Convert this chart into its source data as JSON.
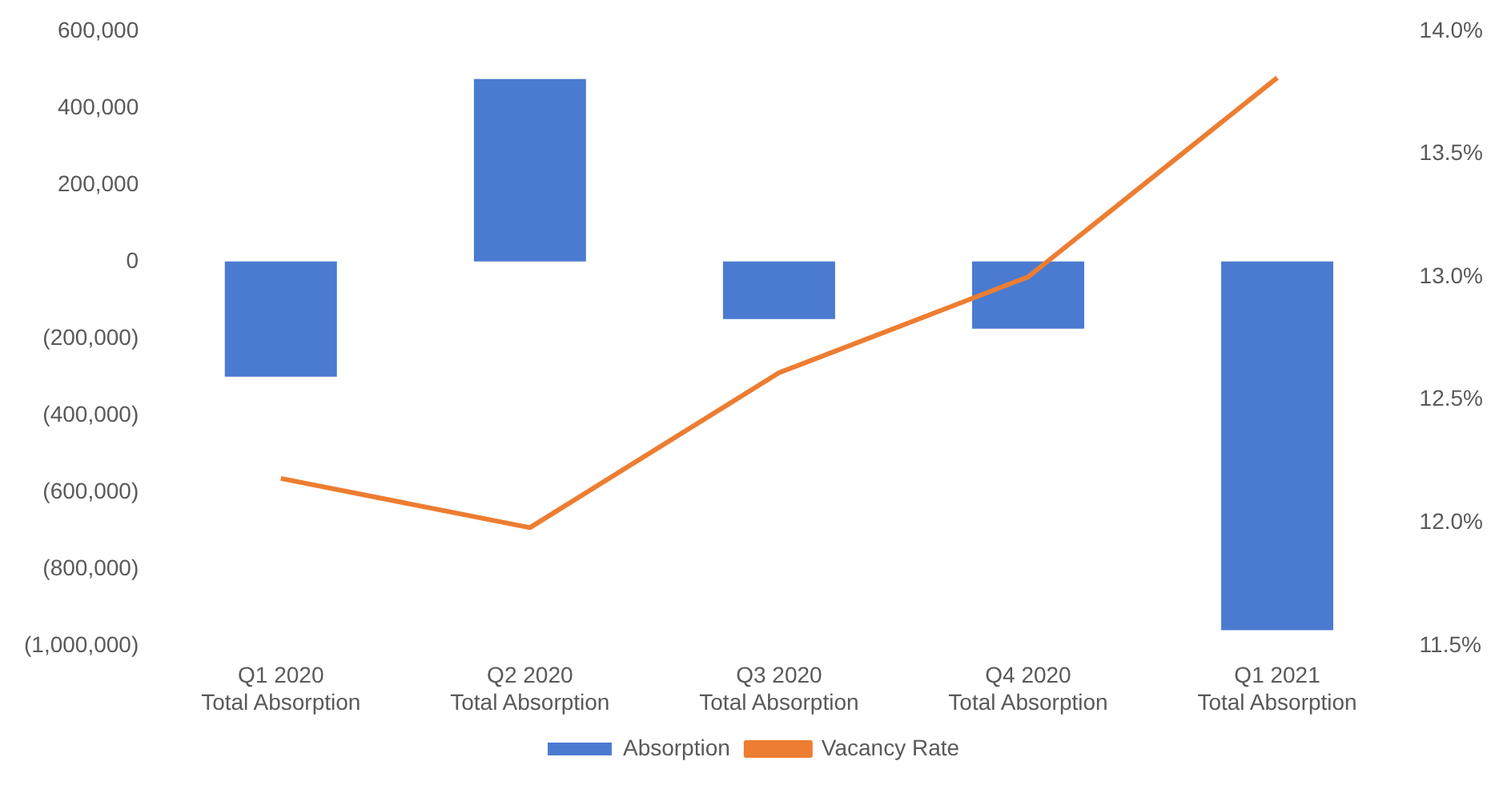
{
  "chart_data": {
    "type": "bar",
    "categories": [
      "Q1 2020\nTotal Absorption",
      "Q2 2020\nTotal Absorption",
      "Q3 2020\nTotal Absorption",
      "Q4 2020\nTotal Absorption",
      "Q1 2021\nTotal Absorption"
    ],
    "series": [
      {
        "name": "Absorption",
        "color": "#4a7bd0",
        "values": [
          -300000,
          475000,
          -150000,
          -175000,
          -960000
        ]
      },
      {
        "name": "Vacancy Rate",
        "type": "line",
        "axis": "y2",
        "color": "#ed7d31",
        "values": [
          12.18,
          11.98,
          12.61,
          13.0,
          13.81
        ]
      }
    ],
    "ylim": [
      -1000000,
      600000
    ],
    "yticks": [
      {
        "value": -1000000,
        "label": "(1,000,000)"
      },
      {
        "value": -800000,
        "label": "(800,000)"
      },
      {
        "value": -600000,
        "label": "(600,000)"
      },
      {
        "value": -400000,
        "label": "(400,000)"
      },
      {
        "value": -200000,
        "label": "(200,000)"
      },
      0,
      {
        "value": 200000,
        "label": "200,000"
      },
      {
        "value": 400000,
        "label": "400,000"
      },
      {
        "value": 600000,
        "label": "600,000"
      }
    ],
    "y2lim": [
      11.5,
      14.0
    ],
    "y2ticks": [
      {
        "value": 11.5,
        "label": "11.5%"
      },
      {
        "value": 12.0,
        "label": "12.0%"
      },
      {
        "value": 12.5,
        "label": "12.5%"
      },
      {
        "value": 13.0,
        "label": "13.0%"
      },
      {
        "value": 13.5,
        "label": "13.5%"
      },
      {
        "value": 14.0,
        "label": "14.0%"
      }
    ],
    "grid": false,
    "legend": "bottom",
    "marker": "none"
  }
}
